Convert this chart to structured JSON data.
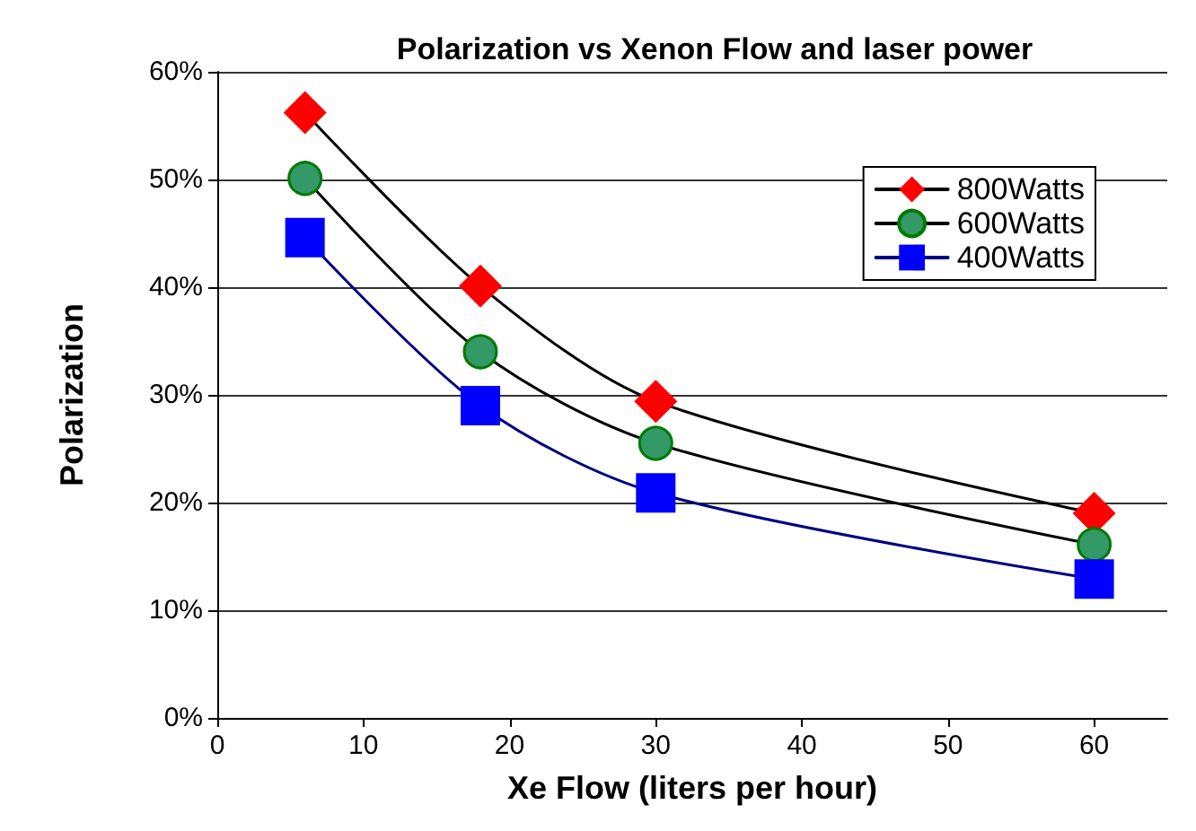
{
  "chart_data": {
    "type": "line",
    "title": "Polarization vs Xenon Flow and laser power",
    "xlabel": "Xe Flow (liters per hour)",
    "ylabel": "Polarization",
    "x": [
      6,
      18,
      30,
      60
    ],
    "series": [
      {
        "name": "800Watts",
        "color": "#ff0000",
        "marker": "diamond",
        "values": [
          56.2,
          40.1,
          29.4,
          19.0
        ]
      },
      {
        "name": "600Watts",
        "color": "#339966",
        "marker": "circle",
        "values": [
          50.1,
          34.0,
          25.5,
          16.1
        ]
      },
      {
        "name": "400Watts",
        "color": "#0000ff",
        "marker": "square",
        "values": [
          44.6,
          29.0,
          20.9,
          12.9
        ]
      }
    ],
    "xlim": [
      0,
      65
    ],
    "xticks": [
      0,
      10,
      20,
      30,
      40,
      50,
      60
    ],
    "ylim": [
      0,
      60
    ],
    "yticks": [
      {
        "value": 0,
        "label": "0%"
      },
      {
        "value": 10,
        "label": "10%"
      },
      {
        "value": 20,
        "label": "20%"
      },
      {
        "value": 30,
        "label": "30%"
      },
      {
        "value": 40,
        "label": "40%"
      },
      {
        "value": 50,
        "label": "50%"
      },
      {
        "value": 60,
        "label": "60%"
      }
    ],
    "grid": "y",
    "legend": "top right",
    "line_style": "solid"
  }
}
